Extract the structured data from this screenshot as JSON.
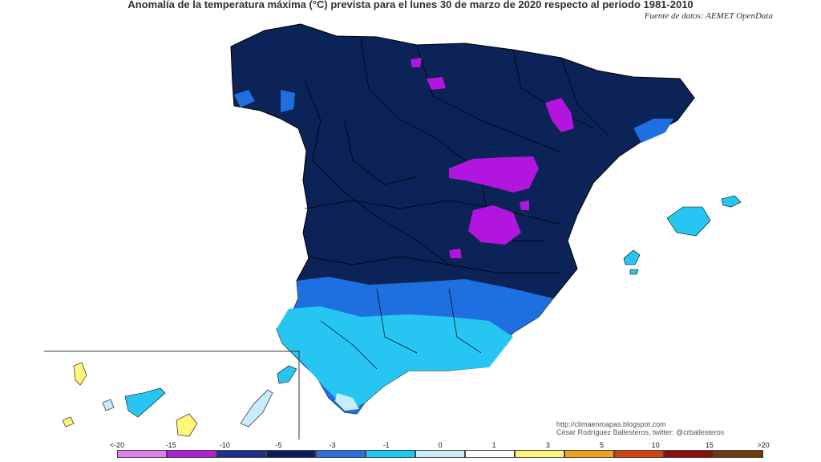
{
  "header": {
    "title": "Anomalía de la temperatura máxima (°C) prevista para el lunes 30 de marzo de 2020 respecto al periodo 1981-2010",
    "source": "Fuente de datos: AEMET OpenData"
  },
  "credits": {
    "line1": "http://climaenmapas.blogspot.com",
    "line2": "César Rodríguez Ballesteros, twitter: @crballesteros"
  },
  "legend": {
    "ticks": [
      "<-20",
      "-15",
      "-10",
      "-5",
      "-3",
      "-1",
      "0",
      "1",
      "3",
      "5",
      "10",
      "15",
      ">20"
    ],
    "colors": [
      "#e07ff0",
      "#b020d8",
      "#1e2f8a",
      "#0a1f5a",
      "#2b6ee0",
      "#1cc8f0",
      "#c9ecfa",
      "#ffffff",
      "#fff67a",
      "#f5a020",
      "#d04510",
      "#8a1010",
      "#6e3a10"
    ]
  },
  "colors": {
    "very_cold": "#0b2357",
    "cold": "#1e6fe0",
    "cool": "#27c6f2",
    "light": "#c8ecfa",
    "extreme": "#b215dd",
    "warm": "#fff67a"
  }
}
